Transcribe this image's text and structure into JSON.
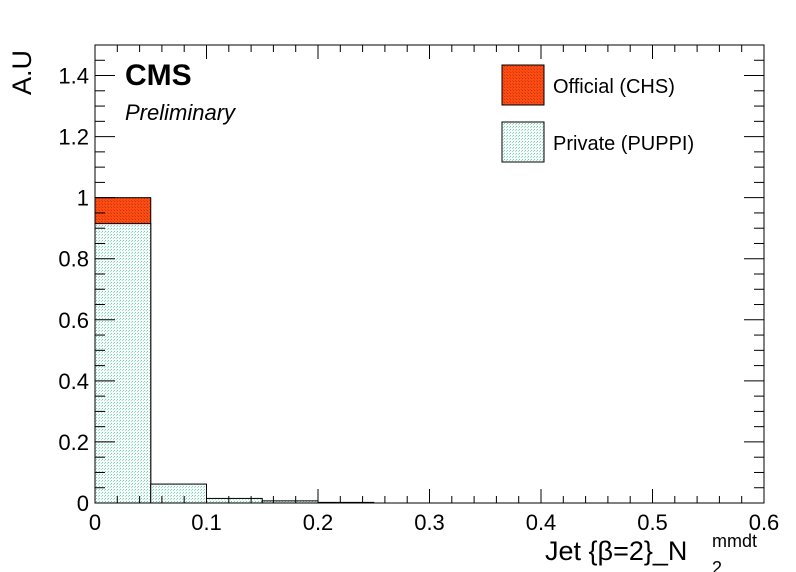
{
  "chart_data": {
    "type": "bar",
    "experiment_label": "CMS",
    "status_label": "Preliminary",
    "xlabel": "Jet {β=2}_N",
    "xlabel_subscript": "2",
    "xlabel_superscript": "mmdt",
    "ylabel": "A.U",
    "xlim": [
      0,
      0.6
    ],
    "ylim": [
      0,
      1.5
    ],
    "bin_edges": [
      0,
      0.05,
      0.1,
      0.15,
      0.2,
      0.25,
      0.3,
      0.35,
      0.4,
      0.45,
      0.5,
      0.55,
      0.6
    ],
    "x_ticks": [
      0,
      0.1,
      0.2,
      0.3,
      0.4,
      0.5,
      0.6
    ],
    "x_tick_labels": [
      "0",
      "0.1",
      "0.2",
      "0.3",
      "0.4",
      "0.5",
      "0.6"
    ],
    "y_ticks": [
      0,
      0.2,
      0.4,
      0.6,
      0.8,
      1,
      1.2,
      1.4
    ],
    "y_tick_labels": [
      "0",
      "0.2",
      "0.4",
      "0.6",
      "0.8",
      "1",
      "1.2",
      "1.4"
    ],
    "grid": false,
    "legend_position": "top-right",
    "series": [
      {
        "name": "Official (CHS)",
        "color": "#ff3d0d",
        "pattern": "solid",
        "values": [
          1.0,
          0,
          0,
          0,
          0,
          0,
          0,
          0,
          0,
          0,
          0,
          0
        ]
      },
      {
        "name": "Private (PUPPI)",
        "color": "#e8f5f1",
        "pattern": "hatched",
        "values": [
          0.915,
          0.062,
          0.015,
          0.007,
          0.002,
          0,
          0,
          0,
          0,
          0,
          0,
          0
        ]
      }
    ]
  }
}
